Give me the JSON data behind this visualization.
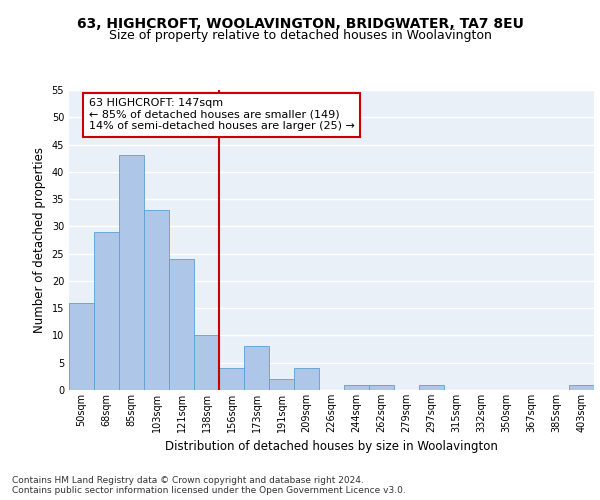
{
  "title": "63, HIGHCROFT, WOOLAVINGTON, BRIDGWATER, TA7 8EU",
  "subtitle": "Size of property relative to detached houses in Woolavington",
  "xlabel": "Distribution of detached houses by size in Woolavington",
  "ylabel": "Number of detached properties",
  "categories": [
    "50sqm",
    "68sqm",
    "85sqm",
    "103sqm",
    "121sqm",
    "138sqm",
    "156sqm",
    "173sqm",
    "191sqm",
    "209sqm",
    "226sqm",
    "244sqm",
    "262sqm",
    "279sqm",
    "297sqm",
    "315sqm",
    "332sqm",
    "350sqm",
    "367sqm",
    "385sqm",
    "403sqm"
  ],
  "values": [
    16,
    29,
    43,
    33,
    24,
    10,
    4,
    8,
    2,
    4,
    0,
    1,
    1,
    0,
    1,
    0,
    0,
    0,
    0,
    0,
    1
  ],
  "bar_color": "#aec6e8",
  "bar_edge_color": "#5a9fd4",
  "annotation_text": "63 HIGHCROFT: 147sqm\n← 85% of detached houses are smaller (149)\n14% of semi-detached houses are larger (25) →",
  "annotation_box_color": "#ffffff",
  "annotation_box_edge_color": "#cc0000",
  "marker_line_color": "#cc0000",
  "ylim": [
    0,
    55
  ],
  "yticks": [
    0,
    5,
    10,
    15,
    20,
    25,
    30,
    35,
    40,
    45,
    50,
    55
  ],
  "background_color": "#eaf0f8",
  "grid_color": "#ffffff",
  "footer_line1": "Contains HM Land Registry data © Crown copyright and database right 2024.",
  "footer_line2": "Contains public sector information licensed under the Open Government Licence v3.0.",
  "title_fontsize": 10,
  "subtitle_fontsize": 9,
  "axis_label_fontsize": 8.5,
  "tick_fontsize": 7,
  "annotation_fontsize": 8,
  "footer_fontsize": 6.5
}
